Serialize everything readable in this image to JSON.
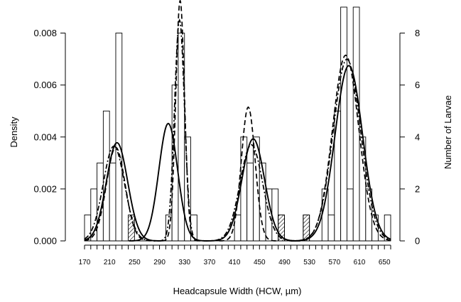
{
  "chart_data": {
    "type": "bar",
    "xlabel": "Headcapsule Width (HCW, µm)",
    "ylabel": "Density",
    "y2label": "Number of Larvae",
    "xlim": [
      170,
      660
    ],
    "ylim": [
      0,
      0.009
    ],
    "y2lim": [
      0,
      9
    ],
    "bin_width": 10,
    "xticks": [
      "170",
      "210",
      "250",
      "290",
      "330",
      "370",
      "410",
      "450",
      "490",
      "530",
      "570",
      "610",
      "650"
    ],
    "xtick_values": [
      170,
      210,
      250,
      290,
      330,
      370,
      410,
      450,
      490,
      530,
      570,
      610,
      650
    ],
    "yticks": [
      "0.000",
      "0.002",
      "0.004",
      "0.006",
      "0.008"
    ],
    "ytick_values": [
      0,
      0.002,
      0.004,
      0.006,
      0.008
    ],
    "y2ticks": [
      "0",
      "2",
      "4",
      "6",
      "8"
    ],
    "y2tick_values": [
      0,
      2,
      4,
      6,
      8
    ],
    "open_bars": [
      {
        "x": 170,
        "count": 1
      },
      {
        "x": 180,
        "count": 2
      },
      {
        "x": 190,
        "count": 3
      },
      {
        "x": 200,
        "count": 5
      },
      {
        "x": 210,
        "count": 3
      },
      {
        "x": 220,
        "count": 8
      },
      {
        "x": 300,
        "count": 1
      },
      {
        "x": 310,
        "count": 6
      },
      {
        "x": 320,
        "count": 8
      },
      {
        "x": 330,
        "count": 4
      },
      {
        "x": 340,
        "count": 1
      },
      {
        "x": 410,
        "count": 1
      },
      {
        "x": 420,
        "count": 4
      },
      {
        "x": 430,
        "count": 3
      },
      {
        "x": 440,
        "count": 4
      },
      {
        "x": 450,
        "count": 3
      },
      {
        "x": 460,
        "count": 2
      },
      {
        "x": 470,
        "count": 2
      },
      {
        "x": 480,
        "count": 1
      },
      {
        "x": 520,
        "count": 1
      },
      {
        "x": 550,
        "count": 2
      },
      {
        "x": 560,
        "count": 1
      },
      {
        "x": 570,
        "count": 5
      },
      {
        "x": 580,
        "count": 9
      },
      {
        "x": 590,
        "count": 2
      },
      {
        "x": 600,
        "count": 9
      },
      {
        "x": 610,
        "count": 4
      },
      {
        "x": 620,
        "count": 2
      },
      {
        "x": 630,
        "count": 1
      },
      {
        "x": 650,
        "count": 1
      }
    ],
    "hatched_bars": [
      {
        "x": 240,
        "count": 1
      },
      {
        "x": 480,
        "count": 1
      },
      {
        "x": 520,
        "count": 1
      }
    ],
    "curves": [
      {
        "style": "solid",
        "components": [
          {
            "mean": 222,
            "sd": 17,
            "peak": 0.00378
          },
          {
            "mean": 304,
            "sd": 15,
            "peak": 0.00452
          },
          {
            "mean": 440,
            "sd": 18,
            "peak": 0.00393
          },
          {
            "mean": 593,
            "sd": 22,
            "peak": 0.00675
          }
        ]
      },
      {
        "style": "dashed",
        "components": [
          {
            "mean": 220,
            "sd": 15,
            "peak": 0.0036
          },
          {
            "mean": 323,
            "sd": 7,
            "peak": 0.00925
          },
          {
            "mean": 432,
            "sd": 11,
            "peak": 0.00515
          },
          {
            "mean": 588,
            "sd": 21,
            "peak": 0.00715
          }
        ]
      },
      {
        "style": "dotdash",
        "components": [
          {
            "mean": 217,
            "sd": 17,
            "peak": 0.00365
          },
          {
            "mean": 322,
            "sd": 8,
            "peak": 0.0085
          },
          {
            "mean": 437,
            "sd": 18,
            "peak": 0.0037
          },
          {
            "mean": 590,
            "sd": 22,
            "peak": 0.007
          }
        ]
      }
    ]
  }
}
